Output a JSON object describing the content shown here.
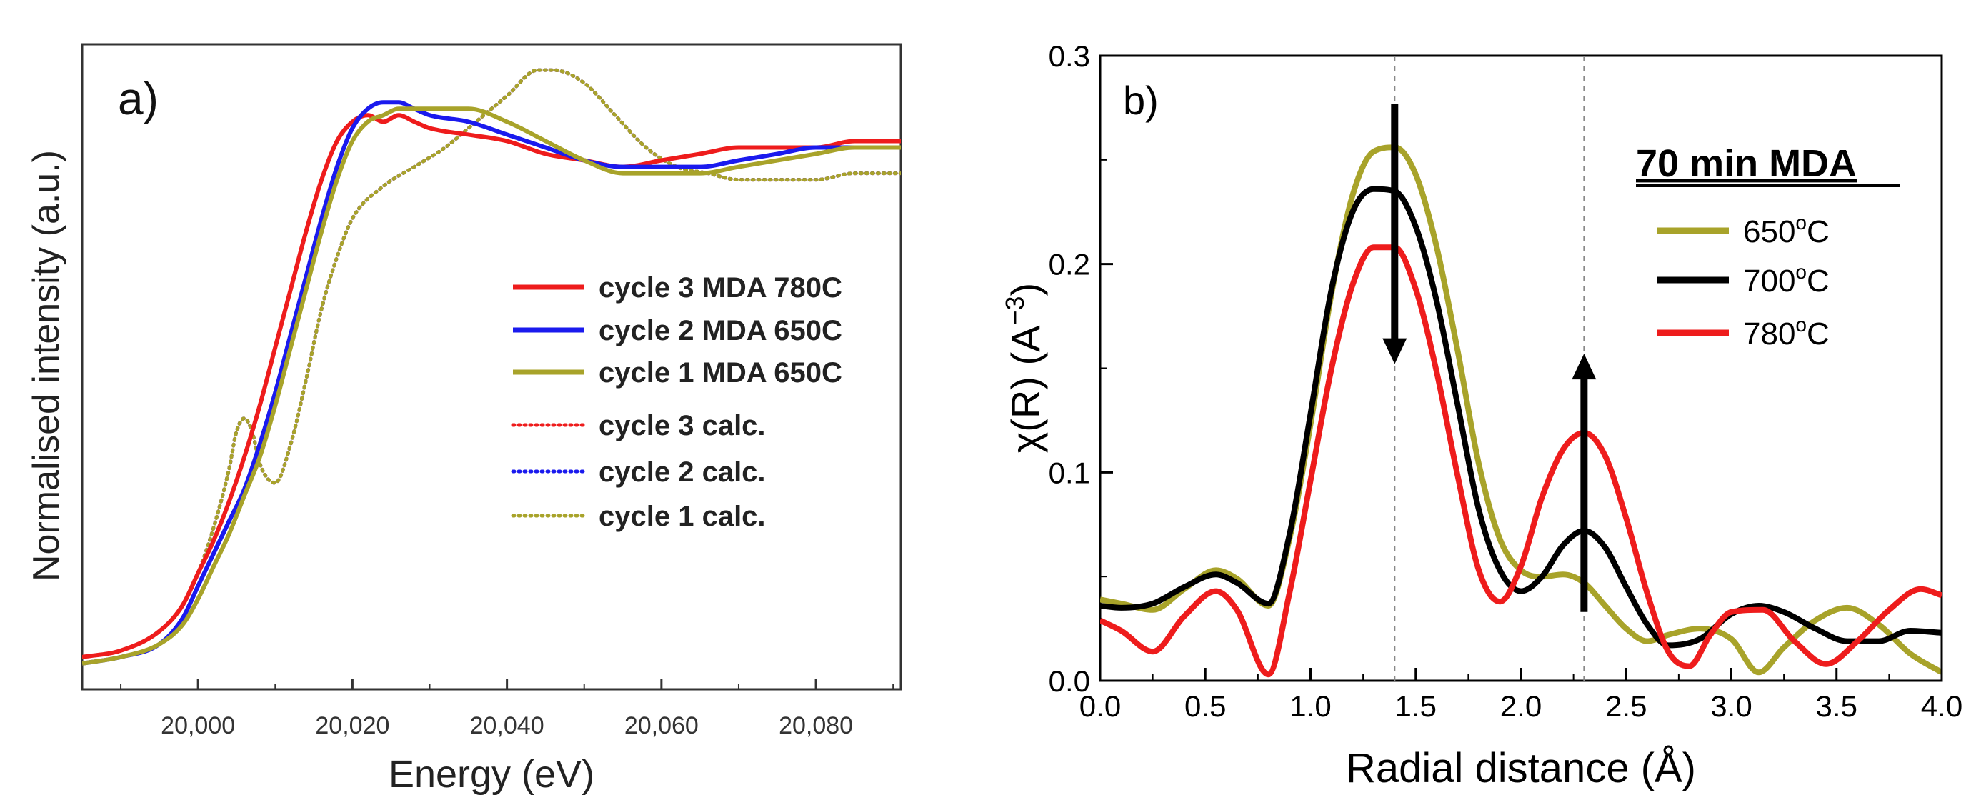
{
  "chart_data": [
    {
      "type": "line",
      "panel_label": "a)",
      "xlabel": "Energy (eV)",
      "ylabel": "Normalised intensity (a.u.)",
      "xlim": [
        19985,
        20091
      ],
      "ylim": [
        0.0,
        1.0
      ],
      "xticks": [
        20000,
        20020,
        20040,
        20060,
        20080
      ],
      "xtick_labels": [
        "20,000",
        "20,020",
        "20,040",
        "20,060",
        "20,080"
      ],
      "grid": false,
      "legend_position": "center-right",
      "series": [
        {
          "name": "cycle 3 MDA 780C",
          "color": "#ee1c1c",
          "style": "solid",
          "x": [
            19985,
            19990,
            19995,
            19998,
            20000,
            20002,
            20004,
            20006,
            20008,
            20010,
            20012,
            20014,
            20016,
            20018,
            20020,
            20022,
            20024,
            20026,
            20028,
            20030,
            20035,
            20040,
            20045,
            20050,
            20055,
            20060,
            20065,
            20070,
            20075,
            20080,
            20085,
            20091
          ],
          "y": [
            0.05,
            0.06,
            0.09,
            0.13,
            0.18,
            0.23,
            0.29,
            0.36,
            0.44,
            0.53,
            0.62,
            0.71,
            0.79,
            0.85,
            0.88,
            0.89,
            0.88,
            0.89,
            0.88,
            0.87,
            0.86,
            0.85,
            0.83,
            0.82,
            0.81,
            0.82,
            0.83,
            0.84,
            0.84,
            0.84,
            0.85,
            0.85
          ]
        },
        {
          "name": "cycle 2 MDA 650C",
          "color": "#1a1aee",
          "style": "solid",
          "x": [
            19985,
            19990,
            19995,
            19998,
            20000,
            20002,
            20004,
            20006,
            20008,
            20010,
            20012,
            20014,
            20016,
            20018,
            20020,
            20022,
            20024,
            20026,
            20028,
            20030,
            20035,
            20040,
            20045,
            20050,
            20055,
            20060,
            20065,
            20070,
            20075,
            20080,
            20085,
            20091
          ],
          "y": [
            0.04,
            0.05,
            0.07,
            0.11,
            0.16,
            0.21,
            0.26,
            0.31,
            0.38,
            0.46,
            0.55,
            0.64,
            0.73,
            0.81,
            0.87,
            0.9,
            0.91,
            0.91,
            0.9,
            0.89,
            0.88,
            0.86,
            0.84,
            0.82,
            0.81,
            0.81,
            0.81,
            0.82,
            0.83,
            0.84,
            0.84,
            0.84
          ]
        },
        {
          "name": "cycle 1 MDA 650C",
          "color": "#a8a32a",
          "style": "solid",
          "x": [
            19985,
            19990,
            19995,
            19998,
            20000,
            20002,
            20004,
            20006,
            20008,
            20010,
            20012,
            20014,
            20016,
            20018,
            20020,
            20022,
            20024,
            20026,
            20028,
            20030,
            20035,
            20040,
            20045,
            20050,
            20055,
            20060,
            20065,
            20070,
            20075,
            20080,
            20085,
            20091
          ],
          "y": [
            0.04,
            0.05,
            0.07,
            0.1,
            0.14,
            0.19,
            0.24,
            0.3,
            0.36,
            0.44,
            0.53,
            0.62,
            0.71,
            0.79,
            0.85,
            0.88,
            0.89,
            0.9,
            0.9,
            0.9,
            0.9,
            0.88,
            0.85,
            0.82,
            0.8,
            0.8,
            0.8,
            0.81,
            0.82,
            0.83,
            0.84,
            0.84
          ]
        },
        {
          "name": "cycle 3 calc.",
          "color": "#ee1c1c",
          "style": "dotted",
          "x": [
            19985,
            19990,
            19995,
            19998,
            20000,
            20002,
            20004,
            20005,
            20006,
            20007,
            20008,
            20010,
            20012,
            20014,
            20016,
            20018,
            20020,
            20024,
            20028,
            20032,
            20036,
            20040,
            20044,
            20046,
            20050,
            20054,
            20058,
            20062,
            20066,
            20070,
            20075,
            20080,
            20085,
            20091
          ],
          "y": [
            0.05,
            0.06,
            0.09,
            0.13,
            0.18,
            0.25,
            0.34,
            0.4,
            0.42,
            0.4,
            0.35,
            0.32,
            0.38,
            0.48,
            0.59,
            0.67,
            0.73,
            0.78,
            0.81,
            0.84,
            0.88,
            0.92,
            0.96,
            0.96,
            0.94,
            0.89,
            0.84,
            0.81,
            0.8,
            0.79,
            0.79,
            0.79,
            0.8,
            0.8
          ]
        },
        {
          "name": "cycle 2 calc.",
          "color": "#1a1aee",
          "style": "dotted",
          "x": [
            19985,
            19990,
            19995,
            19998,
            20000,
            20002,
            20004,
            20005,
            20006,
            20007,
            20008,
            20010,
            20012,
            20014,
            20016,
            20018,
            20020,
            20024,
            20028,
            20032,
            20036,
            20040,
            20044,
            20046,
            20050,
            20054,
            20058,
            20062,
            20066,
            20070,
            20075,
            20080,
            20085,
            20091
          ],
          "y": [
            0.05,
            0.06,
            0.09,
            0.13,
            0.18,
            0.25,
            0.34,
            0.4,
            0.42,
            0.4,
            0.35,
            0.32,
            0.38,
            0.48,
            0.59,
            0.67,
            0.73,
            0.78,
            0.81,
            0.84,
            0.88,
            0.92,
            0.96,
            0.96,
            0.94,
            0.89,
            0.84,
            0.81,
            0.8,
            0.79,
            0.79,
            0.79,
            0.8,
            0.8
          ]
        },
        {
          "name": "cycle 1 calc.",
          "color": "#a8a32a",
          "style": "dotted",
          "x": [
            19985,
            19990,
            19995,
            19998,
            20000,
            20002,
            20004,
            20005,
            20006,
            20007,
            20008,
            20010,
            20012,
            20014,
            20016,
            20018,
            20020,
            20024,
            20028,
            20032,
            20036,
            20040,
            20044,
            20046,
            20050,
            20054,
            20058,
            20062,
            20066,
            20070,
            20075,
            20080,
            20085,
            20091
          ],
          "y": [
            0.05,
            0.06,
            0.09,
            0.13,
            0.18,
            0.25,
            0.34,
            0.4,
            0.42,
            0.4,
            0.35,
            0.32,
            0.38,
            0.48,
            0.59,
            0.67,
            0.73,
            0.78,
            0.81,
            0.84,
            0.88,
            0.92,
            0.96,
            0.96,
            0.94,
            0.89,
            0.84,
            0.81,
            0.8,
            0.79,
            0.79,
            0.79,
            0.8,
            0.8
          ]
        }
      ]
    },
    {
      "type": "line",
      "panel_label": "b)",
      "xlabel": "Radial distance (Å)",
      "ylabel_main": "χ(R) (A",
      "ylabel_sup": "−3",
      "ylabel_close": ")",
      "xlim": [
        0.0,
        4.0
      ],
      "ylim": [
        0.0,
        0.3
      ],
      "xticks": [
        0.0,
        0.5,
        1.0,
        1.5,
        2.0,
        2.5,
        3.0,
        3.5,
        4.0
      ],
      "xtick_labels": [
        "0.0",
        "0.5",
        "1.0",
        "1.5",
        "2.0",
        "2.5",
        "3.0",
        "3.5",
        "4.0"
      ],
      "yticks": [
        0.0,
        0.1,
        0.2,
        0.3
      ],
      "ytick_labels": [
        "0.0",
        "0.1",
        "0.2",
        "0.3"
      ],
      "grid": false,
      "legend_title": "70 min MDA",
      "legend_position": "top-right",
      "reference_lines_x": [
        1.4,
        2.3
      ],
      "annotations": [
        {
          "type": "arrow",
          "direction": "down",
          "x": 1.4,
          "from_y": 0.277,
          "to_y": 0.152
        },
        {
          "type": "arrow",
          "direction": "up",
          "x": 2.3,
          "from_y": 0.033,
          "to_y": 0.157
        }
      ],
      "series": [
        {
          "name": "650",
          "unit": "oC",
          "label": "650°C",
          "color": "#a8a32a",
          "x": [
            0.0,
            0.1,
            0.25,
            0.4,
            0.55,
            0.65,
            0.8,
            0.9,
            1.0,
            1.1,
            1.2,
            1.3,
            1.4,
            1.5,
            1.6,
            1.7,
            1.8,
            1.9,
            2.0,
            2.1,
            2.2,
            2.3,
            2.4,
            2.5,
            2.6,
            2.7,
            2.85,
            3.0,
            3.13,
            3.25,
            3.4,
            3.55,
            3.7,
            3.85,
            4.0
          ],
          "y": [
            0.039,
            0.037,
            0.034,
            0.044,
            0.053,
            0.049,
            0.036,
            0.068,
            0.123,
            0.186,
            0.233,
            0.254,
            0.256,
            0.243,
            0.208,
            0.158,
            0.104,
            0.068,
            0.053,
            0.05,
            0.051,
            0.047,
            0.036,
            0.025,
            0.019,
            0.022,
            0.025,
            0.02,
            0.004,
            0.016,
            0.029,
            0.035,
            0.027,
            0.013,
            0.004
          ]
        },
        {
          "name": "700",
          "unit": "oC",
          "label": "700°C",
          "color": "#000000",
          "x": [
            0.0,
            0.1,
            0.25,
            0.4,
            0.55,
            0.65,
            0.8,
            0.9,
            1.0,
            1.1,
            1.2,
            1.3,
            1.4,
            1.5,
            1.6,
            1.7,
            1.8,
            1.9,
            2.0,
            2.1,
            2.2,
            2.3,
            2.4,
            2.5,
            2.6,
            2.7,
            2.85,
            3.0,
            3.13,
            3.25,
            3.4,
            3.55,
            3.7,
            3.85,
            4.0
          ],
          "y": [
            0.036,
            0.035,
            0.037,
            0.045,
            0.051,
            0.047,
            0.037,
            0.07,
            0.128,
            0.188,
            0.225,
            0.236,
            0.235,
            0.218,
            0.182,
            0.132,
            0.082,
            0.053,
            0.043,
            0.05,
            0.065,
            0.072,
            0.064,
            0.045,
            0.027,
            0.017,
            0.02,
            0.032,
            0.036,
            0.033,
            0.025,
            0.019,
            0.019,
            0.024,
            0.023
          ]
        },
        {
          "name": "780",
          "unit": "oC",
          "label": "780°C",
          "color": "#ee1c1c",
          "x": [
            0.0,
            0.1,
            0.25,
            0.4,
            0.55,
            0.65,
            0.8,
            0.9,
            1.0,
            1.1,
            1.2,
            1.3,
            1.4,
            1.5,
            1.6,
            1.7,
            1.8,
            1.9,
            2.0,
            2.1,
            2.2,
            2.3,
            2.4,
            2.5,
            2.6,
            2.7,
            2.8,
            2.9,
            3.0,
            3.15,
            3.3,
            3.45,
            3.6,
            3.75,
            3.9,
            4.0
          ],
          "y": [
            0.029,
            0.024,
            0.014,
            0.031,
            0.043,
            0.034,
            0.003,
            0.042,
            0.096,
            0.15,
            0.19,
            0.208,
            0.208,
            0.188,
            0.148,
            0.098,
            0.053,
            0.038,
            0.055,
            0.088,
            0.111,
            0.119,
            0.108,
            0.078,
            0.042,
            0.014,
            0.007,
            0.022,
            0.033,
            0.034,
            0.019,
            0.008,
            0.019,
            0.034,
            0.044,
            0.041
          ]
        }
      ]
    }
  ]
}
